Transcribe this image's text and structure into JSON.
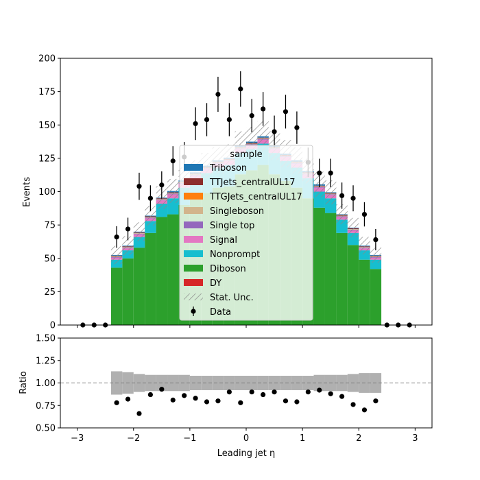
{
  "chart_data": {
    "type": "bar",
    "stacked": true,
    "xlabel": "Leading jet  η",
    "ylabel": "Events",
    "ratio_ylabel": "Ratio",
    "xlim": [
      -3.3,
      3.3
    ],
    "ylim": [
      0,
      200
    ],
    "ratio_ylim": [
      0.5,
      1.5
    ],
    "x_ticks": [
      "−3",
      "−2",
      "−1",
      "0",
      "1",
      "2",
      "3"
    ],
    "y_ticks": [
      "0",
      "25",
      "50",
      "75",
      "100",
      "125",
      "150",
      "175",
      "200"
    ],
    "ratio_y_ticks": [
      "0.50",
      "0.75",
      "1.00",
      "1.25",
      "1.50"
    ],
    "bin_edges": [
      -2.4,
      -2.2,
      -2.0,
      -1.8,
      -1.6,
      -1.4,
      -1.2,
      -1.0,
      -0.8,
      -0.6,
      -0.4,
      -0.2,
      0.0,
      0.2,
      0.4,
      0.6,
      0.8,
      1.0,
      1.2,
      1.4,
      1.6,
      1.8,
      2.0,
      2.2,
      2.4
    ],
    "legend": {
      "title": "sample",
      "placement": "center",
      "entries": [
        "Triboson",
        "TTJets_centralUL17",
        "TTGJets_centralUL17",
        "Singleboson",
        "Single top",
        "Signal",
        "Nonprompt",
        "Diboson",
        "DY",
        "Stat. Unc.",
        "Data"
      ]
    },
    "colors": {
      "Triboson": "#1f77b4",
      "TTJets_centralUL17": "#8c2d2d",
      "TTGJets_centralUL17": "#ff7f0e",
      "Singleboson": "#d2b48c",
      "Single top": "#9467bd",
      "Signal": "#e377c2",
      "Nonprompt": "#17becf",
      "Diboson": "#2ca02c",
      "DY": "#d62728",
      "unc": "#b0b0b0",
      "data": "#000000"
    },
    "series": [
      {
        "name": "Diboson",
        "values": [
          43,
          50,
          58,
          69,
          81,
          83,
          90,
          95,
          99,
          103,
          104,
          113,
          116,
          120,
          113,
          108,
          103,
          95,
          88,
          84,
          69,
          60,
          49,
          42
        ]
      },
      {
        "name": "Nonprompt",
        "values": [
          6,
          6,
          8,
          9,
          10,
          12,
          13,
          14,
          15,
          15,
          16,
          16,
          16,
          16,
          16,
          15,
          15,
          15,
          12,
          11,
          10,
          9,
          7,
          7
        ]
      },
      {
        "name": "Signal",
        "values": [
          1.5,
          1.5,
          2,
          2,
          2.5,
          3,
          3,
          3,
          3,
          3,
          3,
          3,
          3,
          3,
          3,
          3,
          3,
          3,
          3,
          2.5,
          2,
          2,
          1.5,
          1.5
        ]
      },
      {
        "name": "Single top",
        "values": [
          0.5,
          0.5,
          0.5,
          0.5,
          0.5,
          0.5,
          0.5,
          0.5,
          0.5,
          0.5,
          0.5,
          0.5,
          0.5,
          0.5,
          0.5,
          0.5,
          0.5,
          0.5,
          0.5,
          0.5,
          0.5,
          0.5,
          0.5,
          0.5
        ]
      },
      {
        "name": "Singleboson",
        "values": [
          0.5,
          0.5,
          0.5,
          0.5,
          0.5,
          0.5,
          0.5,
          0.5,
          0.5,
          0.5,
          0.5,
          0.5,
          0.5,
          0.5,
          0.5,
          0.5,
          0.5,
          0.5,
          0.5,
          0.5,
          0.5,
          0.5,
          0.5,
          0.5
        ]
      },
      {
        "name": "TTGJets_centralUL17",
        "values": [
          0,
          0,
          0,
          0,
          0,
          0,
          0,
          0,
          0,
          0,
          0,
          0,
          0,
          0,
          0,
          0,
          0,
          0,
          0,
          0,
          0,
          0,
          0,
          0
        ]
      },
      {
        "name": "TTJets_centralUL17",
        "values": [
          0.5,
          0.5,
          0.5,
          0.5,
          0.5,
          0.5,
          0.5,
          0.5,
          0.5,
          0.5,
          0.5,
          0.5,
          0.5,
          0.5,
          0.5,
          0.5,
          0.5,
          0.5,
          0.5,
          0.5,
          0.5,
          0.5,
          0.5,
          0.5
        ]
      },
      {
        "name": "Triboson",
        "values": [
          0.5,
          0.5,
          0.5,
          0.5,
          0.5,
          1,
          1,
          1,
          1,
          1,
          1,
          1,
          1,
          1,
          1,
          1,
          1,
          1,
          1,
          0.5,
          0.5,
          0.5,
          0.5,
          0.5
        ]
      },
      {
        "name": "DY",
        "values": [
          0,
          0,
          0,
          0,
          0,
          0,
          0,
          0,
          0,
          0,
          0,
          0,
          0,
          0,
          0,
          0,
          0,
          0,
          0,
          0,
          0,
          0,
          0,
          0
        ]
      }
    ],
    "stat_unc_rel": [
      0.13,
      0.12,
      0.1,
      0.09,
      0.09,
      0.09,
      0.09,
      0.08,
      0.08,
      0.08,
      0.08,
      0.08,
      0.08,
      0.08,
      0.08,
      0.08,
      0.08,
      0.08,
      0.09,
      0.09,
      0.09,
      0.1,
      0.11,
      0.11
    ],
    "data": {
      "name": "Data",
      "x": [
        -2.9,
        -2.7,
        -2.5,
        -2.3,
        -2.1,
        -1.9,
        -1.7,
        -1.5,
        -1.3,
        -1.1,
        -0.9,
        -0.7,
        -0.5,
        -0.3,
        -0.1,
        0.1,
        0.3,
        0.5,
        0.7,
        0.9,
        1.1,
        1.3,
        1.5,
        1.7,
        1.9,
        2.1,
        2.3,
        2.5,
        2.7,
        2.9
      ],
      "y": [
        0,
        0,
        0,
        66,
        72,
        104,
        95,
        105,
        123,
        126,
        151,
        154,
        173,
        154,
        177,
        157,
        162,
        145,
        160,
        148,
        122,
        114,
        114,
        97,
        95,
        83,
        64,
        0,
        0,
        0
      ]
    },
    "ratio": {
      "x": [
        -2.3,
        -2.1,
        -1.9,
        -1.7,
        -1.5,
        -1.3,
        -1.1,
        -0.9,
        -0.7,
        -0.5,
        -0.3,
        -0.1,
        0.1,
        0.3,
        0.5,
        0.7,
        0.9,
        1.1,
        1.3,
        1.5,
        1.7,
        1.9,
        2.1,
        2.3
      ],
      "y": [
        0.78,
        0.82,
        0.66,
        0.87,
        0.93,
        0.81,
        0.86,
        0.83,
        0.79,
        0.8,
        0.9,
        0.78,
        0.9,
        0.87,
        0.9,
        0.8,
        0.79,
        0.9,
        0.92,
        0.88,
        0.85,
        0.76,
        0.7,
        0.8
      ]
    }
  }
}
